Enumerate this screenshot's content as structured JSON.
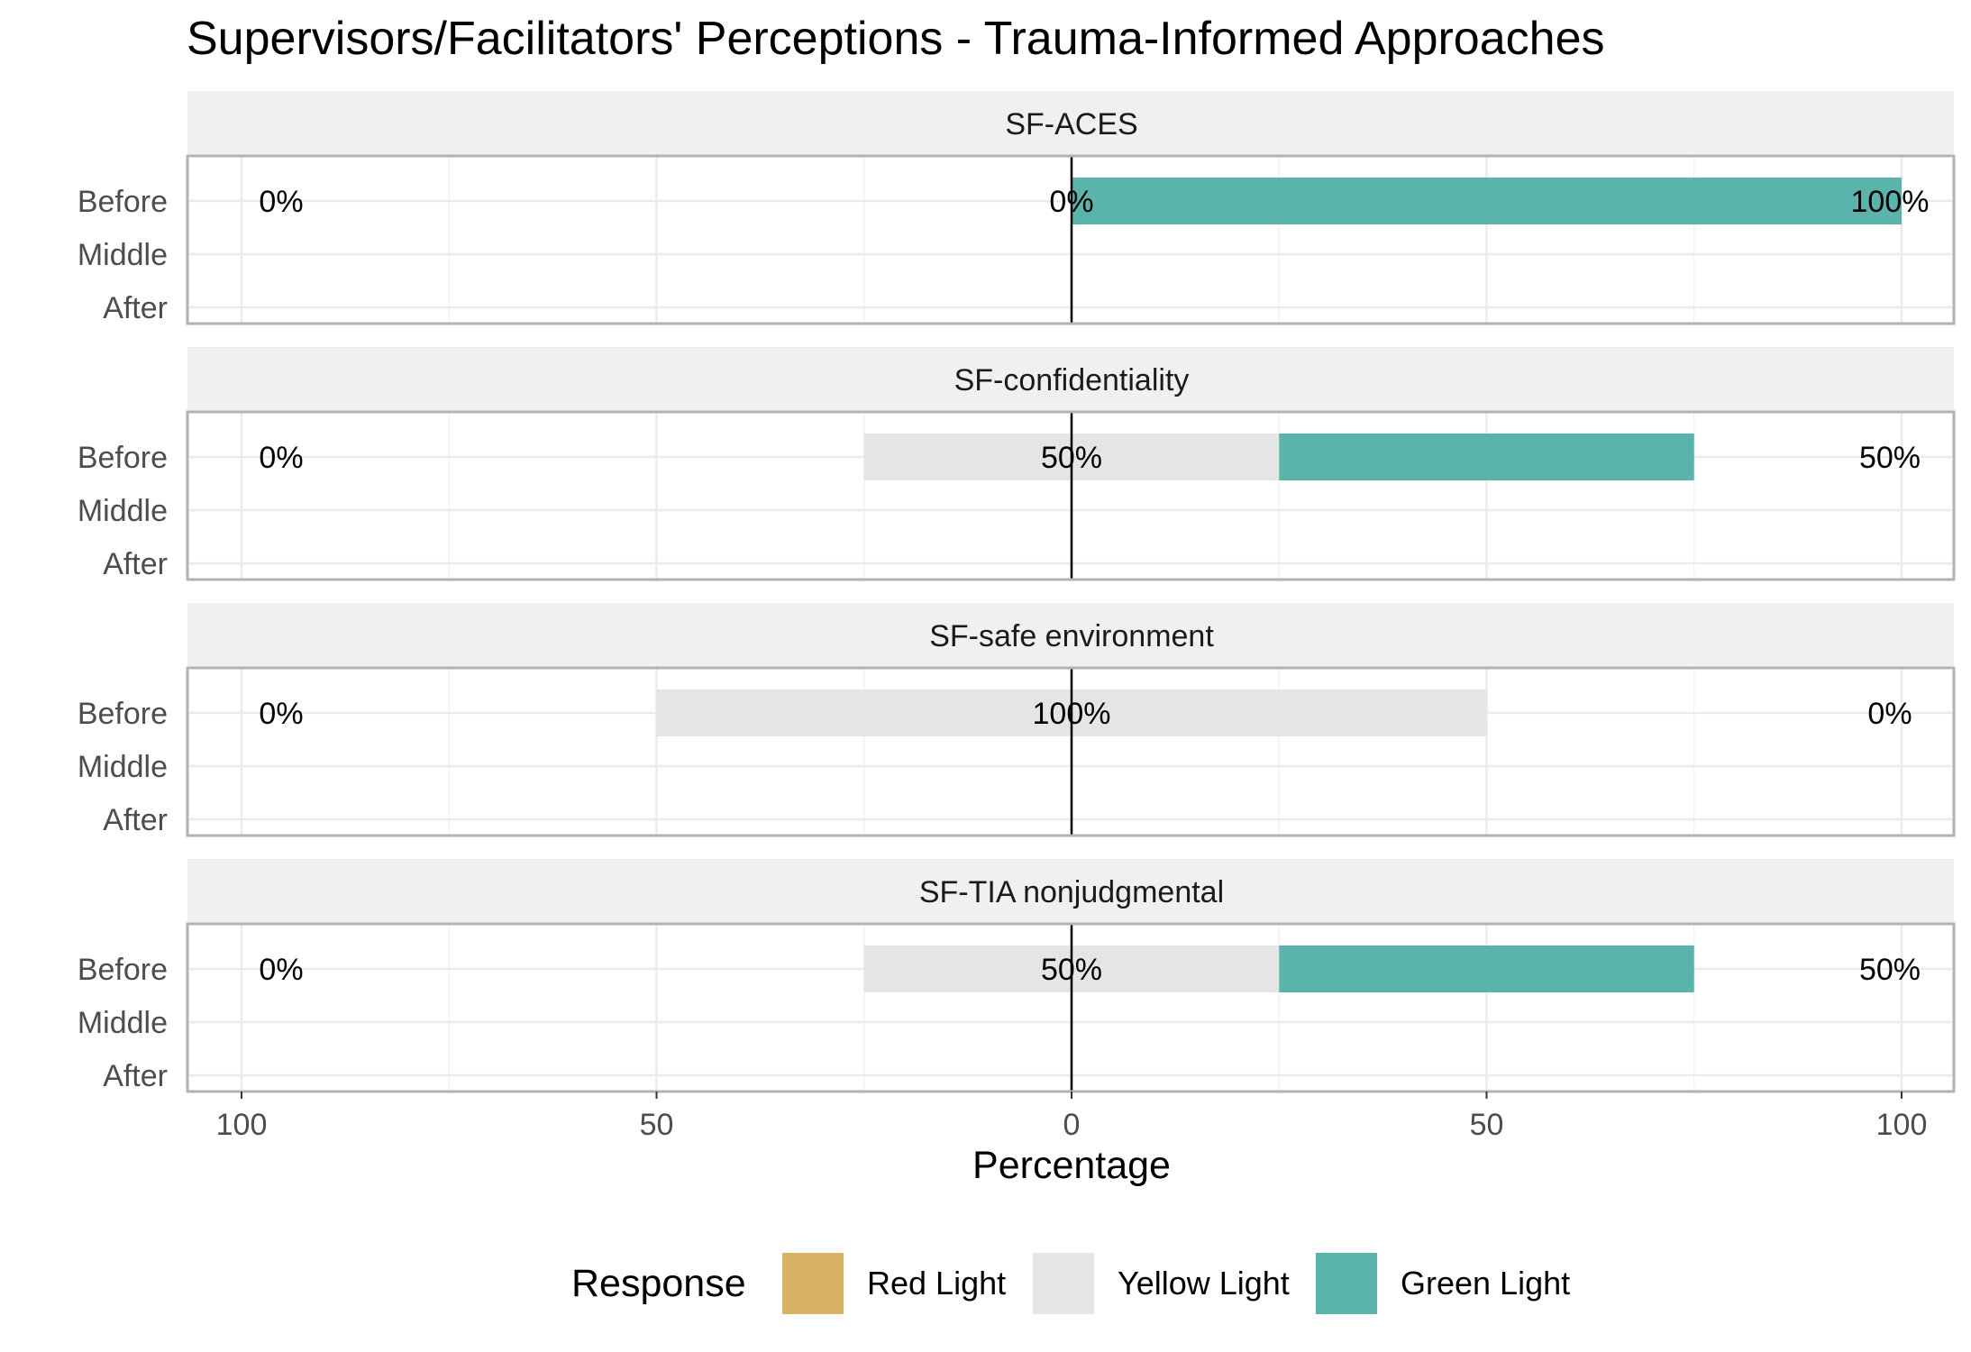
{
  "chart_data": {
    "type": "bar",
    "orientation": "horizontal-diverging",
    "title": "Supervisors/Facilitators' Perceptions - Trauma-Informed Approaches",
    "xlabel": "Percentage",
    "ylabel": "",
    "xlim": [
      -100,
      100
    ],
    "x_ticks": [
      -100,
      -50,
      0,
      50,
      100
    ],
    "x_tick_labels": [
      "100",
      "50",
      "0",
      "50",
      "100"
    ],
    "categories": [
      "Before",
      "Middle",
      "After"
    ],
    "grid": true,
    "legend_position": "bottom",
    "legend": {
      "title": "Response",
      "items": [
        {
          "label": "Red Light",
          "color": "#D8B365"
        },
        {
          "label": "Yellow Light",
          "color": "#E5E5E5"
        },
        {
          "label": "Green Light",
          "color": "#5AB4AC"
        }
      ]
    },
    "panels": [
      {
        "name": "SF-ACES",
        "bars": [
          {
            "category": "Before",
            "red": 0,
            "yellow": 0,
            "green": 100
          }
        ],
        "labels": [
          {
            "category": "Before",
            "left": "0%",
            "center": "0%",
            "right": "100%"
          }
        ]
      },
      {
        "name": "SF-confidentiality",
        "bars": [
          {
            "category": "Before",
            "red": 0,
            "yellow": 50,
            "green": 50
          }
        ],
        "labels": [
          {
            "category": "Before",
            "left": "0%",
            "center": "50%",
            "right": "50%"
          }
        ]
      },
      {
        "name": "SF-safe environment",
        "bars": [
          {
            "category": "Before",
            "red": 0,
            "yellow": 100,
            "green": 0
          }
        ],
        "labels": [
          {
            "category": "Before",
            "left": "0%",
            "center": "100%",
            "right": "0%"
          }
        ]
      },
      {
        "name": "SF-TIA nonjudgmental",
        "bars": [
          {
            "category": "Before",
            "red": 0,
            "yellow": 50,
            "green": 50
          }
        ],
        "labels": [
          {
            "category": "Before",
            "left": "0%",
            "center": "50%",
            "right": "50%"
          }
        ]
      }
    ]
  }
}
